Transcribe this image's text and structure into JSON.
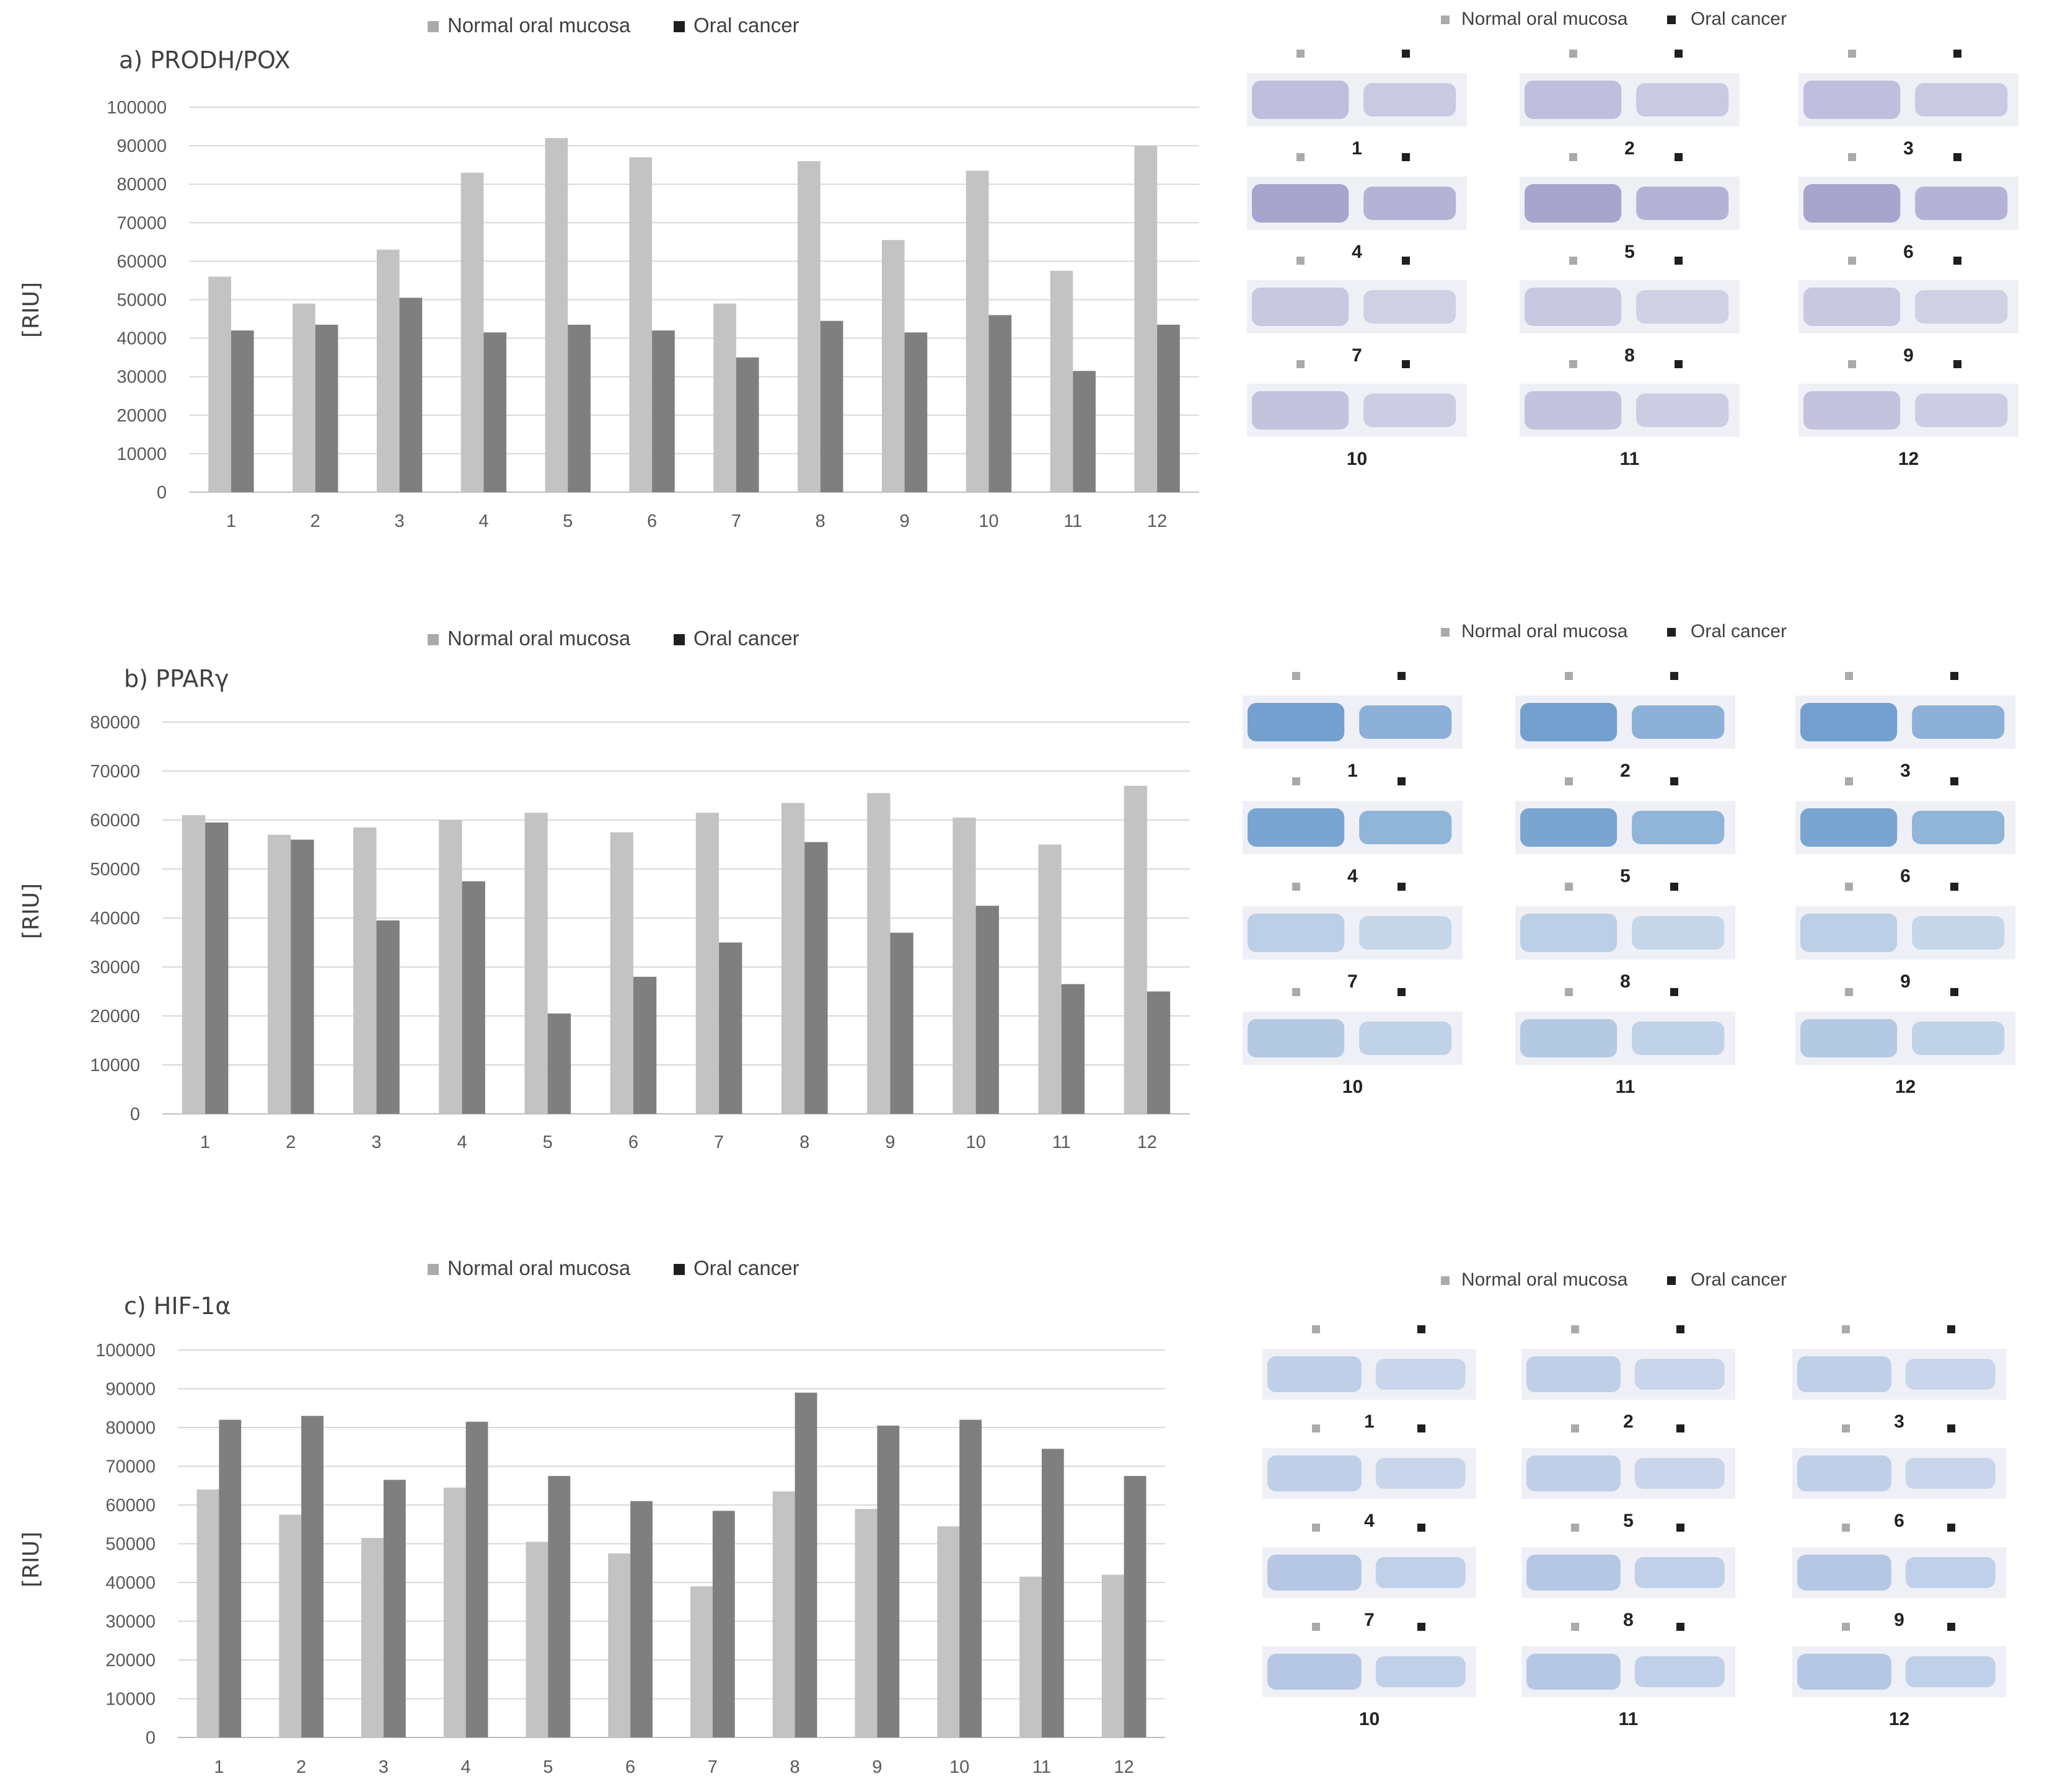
{
  "colors": {
    "normal": "#c3c3c3",
    "cancer": "#7f7f7f",
    "legend_normal": "#aaaaaa",
    "legend_cancer": "#1f1f1f",
    "blot_pox": "#9a96c6",
    "blot_ppar": "#5d92c8",
    "blot_hif": "#86a6d6"
  },
  "y_axis_label": "[RIU]",
  "blot_legend": {
    "normal": "Normal oral mucosa",
    "cancer": "Oral cancer"
  },
  "blot_lane_labels": [
    "1",
    "2",
    "3",
    "4",
    "5",
    "6",
    "7",
    "8",
    "9",
    "10",
    "11",
    "12"
  ],
  "chart_data": [
    {
      "type": "bar",
      "title": "a) PRODH/POX",
      "xlabel": "",
      "ylabel": "[RIU]",
      "categories": [
        "1",
        "2",
        "3",
        "4",
        "5",
        "6",
        "7",
        "8",
        "9",
        "10",
        "11",
        "12"
      ],
      "series": [
        {
          "name": "Normal oral mucosa",
          "values": [
            56000,
            49000,
            63000,
            83000,
            92000,
            87000,
            49000,
            86000,
            65500,
            83500,
            57500,
            90000
          ]
        },
        {
          "name": "Oral cancer",
          "values": [
            42000,
            43500,
            50500,
            41500,
            43500,
            42000,
            35000,
            44500,
            41500,
            46000,
            31500,
            43500
          ]
        }
      ],
      "ylim": [
        0,
        100000
      ],
      "yticks": [
        "0",
        "10000",
        "20000",
        "30000",
        "40000",
        "50000",
        "60000",
        "70000",
        "80000",
        "90000",
        "100000"
      ],
      "legend": "top-center"
    },
    {
      "type": "bar",
      "title": "b) PPARγ",
      "xlabel": "",
      "ylabel": "[RIU]",
      "categories": [
        "1",
        "2",
        "3",
        "4",
        "5",
        "6",
        "7",
        "8",
        "9",
        "10",
        "11",
        "12"
      ],
      "series": [
        {
          "name": "Normal oral mucosa",
          "values": [
            61000,
            57000,
            58500,
            60000,
            61500,
            57500,
            61500,
            63500,
            65500,
            60500,
            55000,
            67000
          ]
        },
        {
          "name": "Oral cancer",
          "values": [
            59500,
            56000,
            39500,
            47500,
            20500,
            28000,
            35000,
            55500,
            37000,
            42500,
            26500,
            25000
          ]
        }
      ],
      "ylim": [
        0,
        80000
      ],
      "yticks": [
        "0",
        "10000",
        "20000",
        "30000",
        "40000",
        "50000",
        "60000",
        "70000",
        "80000"
      ],
      "legend": "top-center"
    },
    {
      "type": "bar",
      "title": "c) HIF-1α",
      "xlabel": "",
      "ylabel": "[RIU]",
      "categories": [
        "1",
        "2",
        "3",
        "4",
        "5",
        "6",
        "7",
        "8",
        "9",
        "10",
        "11",
        "12"
      ],
      "series": [
        {
          "name": "Normal oral mucosa",
          "values": [
            64000,
            57500,
            51500,
            64500,
            50500,
            47500,
            39000,
            63500,
            59000,
            54500,
            41500,
            42000
          ]
        },
        {
          "name": "Oral cancer",
          "values": [
            82000,
            83000,
            66500,
            81500,
            67500,
            61000,
            58500,
            89000,
            80500,
            82000,
            74500,
            67500
          ]
        }
      ],
      "ylim": [
        0,
        100000
      ],
      "yticks": [
        "0",
        "10000",
        "20000",
        "30000",
        "40000",
        "50000",
        "60000",
        "70000",
        "80000",
        "90000",
        "100000"
      ],
      "legend": "top-center"
    }
  ]
}
